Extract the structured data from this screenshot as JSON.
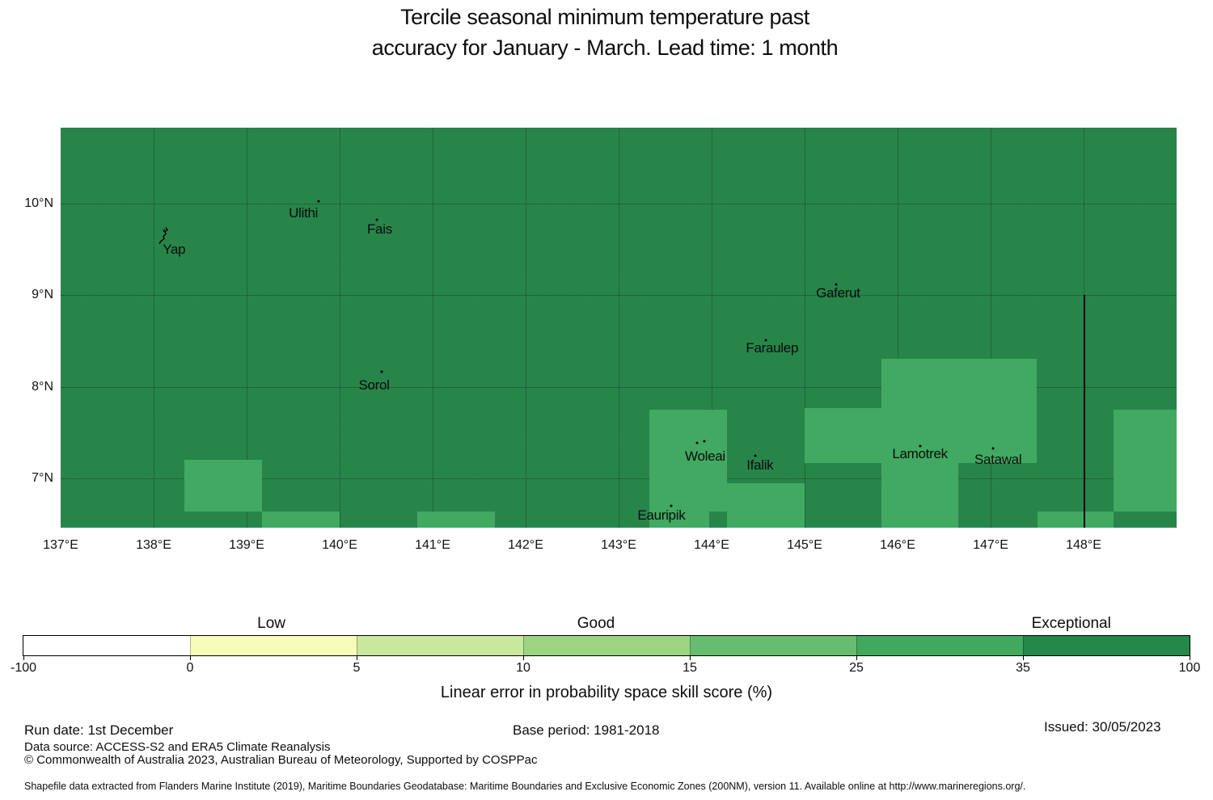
{
  "title": {
    "line1": "Tercile seasonal minimum temperature past",
    "line2": "accuracy for January - March. Lead time: 1 month"
  },
  "footer": {
    "run_date": "Run date: 1st December",
    "base_period": "Base period: 1981-2018",
    "issued": "Issued: 30/05/2023",
    "data_source": "Data source: ACCESS-S2 and ERA5 Climate Reanalysis",
    "copyright": "© Commonwealth of Australia 2023, Australian Bureau of Meteorology, Supported by COSPPac",
    "shapefile_note": "Shapefile data extracted from Flanders Marine Institute (2019), Maritime Boundaries Geodatabase: Maritime Boundaries and Exclusive Economic Zones (200NM), version 11. Available online at http://www.marineregions.org/."
  },
  "colors": {
    "map_background": "#27854a",
    "highlight_cell": "#41a961",
    "boundary_line": "#000000"
  },
  "chart_data": {
    "type": "heatmap",
    "title": "Tercile seasonal minimum temperature past accuracy for January - March. Lead time: 1 month",
    "colorbar_label": "Linear error in probability space skill score (%)",
    "x_axis": {
      "range": [
        137,
        149.0
      ],
      "ticks": [
        {
          "label": "137°E",
          "lon": 137
        },
        {
          "label": "138°E",
          "lon": 138
        },
        {
          "label": "139°E",
          "lon": 139
        },
        {
          "label": "140°E",
          "lon": 140
        },
        {
          "label": "141°E",
          "lon": 141
        },
        {
          "label": "142°E",
          "lon": 142
        },
        {
          "label": "143°E",
          "lon": 143
        },
        {
          "label": "144°E",
          "lon": 144
        },
        {
          "label": "145°E",
          "lon": 145
        },
        {
          "label": "146°E",
          "lon": 146
        },
        {
          "label": "147°E",
          "lon": 147
        },
        {
          "label": "148°E",
          "lon": 148
        }
      ]
    },
    "y_axis": {
      "range": [
        6.46,
        10.83
      ],
      "ticks": [
        {
          "label": "10°N",
          "lat": 10
        },
        {
          "label": "9°N",
          "lat": 9
        },
        {
          "label": "8°N",
          "lat": 8
        },
        {
          "label": "7°N",
          "lat": 7
        }
      ]
    },
    "gridline_lons": [
      138,
      139,
      140,
      141,
      142,
      143,
      144,
      145,
      146,
      147,
      148
    ],
    "gridline_lats": [
      10,
      9,
      8,
      7
    ],
    "background_value_bin": "35-100",
    "cells": [
      {
        "bin": "25-35",
        "lon0": 138.33,
        "lon1": 139.165,
        "lat0": 6.638,
        "lat1": 7.203
      },
      {
        "bin": "25-35",
        "lon0": 139.165,
        "lon1": 140.0,
        "lat0": 6.46,
        "lat1": 6.638
      },
      {
        "bin": "25-35",
        "lon0": 140.835,
        "lon1": 141.67,
        "lat0": 6.46,
        "lat1": 6.638
      },
      {
        "bin": "25-35",
        "lon0": 143.33,
        "lon1": 144.165,
        "lat0": 6.46,
        "lat1": 7.75
      },
      {
        "bin": "25-35",
        "lon0": 144.165,
        "lon1": 145.0,
        "lat0": 6.46,
        "lat1": 6.947
      },
      {
        "bin": "25-35",
        "lon0": 145.0,
        "lon1": 145.826,
        "lat0": 7.168,
        "lat1": 7.768
      },
      {
        "bin": "25-35",
        "lon0": 145.826,
        "lon1": 147.496,
        "lat0": 7.168,
        "lat1": 8.307
      },
      {
        "bin": "25-35",
        "lon0": 145.826,
        "lon1": 146.652,
        "lat0": 6.46,
        "lat1": 7.168
      },
      {
        "bin": "25-35",
        "lon0": 147.504,
        "lon1": 148.322,
        "lat0": 6.46,
        "lat1": 6.638
      },
      {
        "bin": "25-35",
        "lon0": 148.322,
        "lon1": 149.0,
        "lat0": 6.638,
        "lat1": 7.75
      }
    ],
    "dark_patches": [
      {
        "bin": "35-100",
        "lon0": 143.974,
        "lon1": 144.165,
        "lat0": 6.46,
        "lat1": 6.638
      }
    ],
    "boundary_line": {
      "lon": 148.0,
      "lat_from": 9.0,
      "lat_to": 6.46
    },
    "places": [
      {
        "name": "Yap",
        "lon": 138.22,
        "lat": 9.497
      },
      {
        "name": "Ulithi",
        "lon": 139.61,
        "lat": 9.894
      },
      {
        "name": "Fais",
        "lon": 140.43,
        "lat": 9.718
      },
      {
        "name": "Sorol",
        "lon": 140.37,
        "lat": 8.015
      },
      {
        "name": "Gaferut",
        "lon": 145.36,
        "lat": 9.021
      },
      {
        "name": "Faraulep",
        "lon": 144.65,
        "lat": 8.421
      },
      {
        "name": "Woleai",
        "lon": 143.93,
        "lat": 7.238
      },
      {
        "name": "Ifalik",
        "lon": 144.52,
        "lat": 7.141
      },
      {
        "name": "Eauripik",
        "lon": 143.46,
        "lat": 6.594
      },
      {
        "name": "Lamotrek",
        "lon": 146.24,
        "lat": 7.265
      },
      {
        "name": "Satawal",
        "lon": 147.08,
        "lat": 7.203
      }
    ],
    "island_markers": [
      {
        "name": "Ulithi",
        "lon": 139.77,
        "lat": 10.026
      },
      {
        "name": "Fais",
        "lon": 140.4,
        "lat": 9.823
      },
      {
        "name": "Sorol",
        "lon": 140.452,
        "lat": 8.165
      },
      {
        "name": "Gaferut",
        "lon": 145.339,
        "lat": 9.118
      },
      {
        "name": "Faraulep",
        "lon": 144.583,
        "lat": 8.509
      },
      {
        "name": "Woleai",
        "lon": 143.843,
        "lat": 7.388
      },
      {
        "name": "Woleai",
        "lon": 143.922,
        "lat": 7.406
      },
      {
        "name": "Ifalik",
        "lon": 144.47,
        "lat": 7.247
      },
      {
        "name": "Eauripik",
        "lon": 143.565,
        "lat": 6.7
      },
      {
        "name": "Lamotrek",
        "lon": 146.243,
        "lat": 7.353
      },
      {
        "name": "Satawal",
        "lon": 147.026,
        "lat": 7.326
      }
    ],
    "yap_island": {
      "lon": 138.104,
      "lat": 9.63
    },
    "colorbar": {
      "bounds": [
        "-100",
        "0",
        "5",
        "10",
        "15",
        "25",
        "35",
        "100"
      ],
      "colors": [
        "#ffffff",
        "#f7fcb9",
        "#c9e89b",
        "#9cd482",
        "#66bd6f",
        "#41a95e",
        "#23884a"
      ],
      "categories": [
        {
          "label": "Low",
          "pos": 0.213
        },
        {
          "label": "Good",
          "pos": 0.491
        },
        {
          "label": "Exceptional",
          "pos": 0.898
        }
      ]
    }
  }
}
